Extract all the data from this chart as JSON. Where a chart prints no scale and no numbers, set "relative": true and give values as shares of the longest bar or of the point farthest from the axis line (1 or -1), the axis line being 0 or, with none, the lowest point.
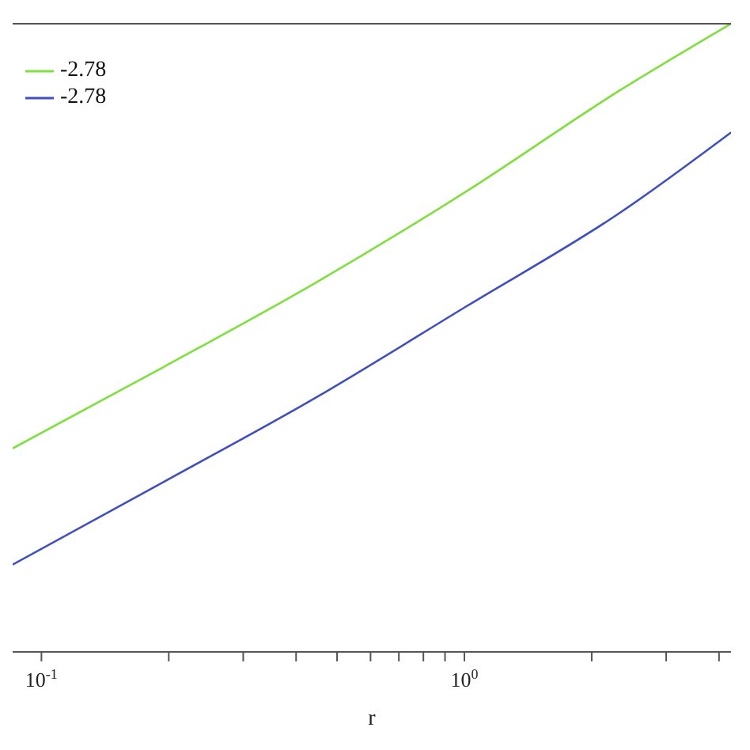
{
  "chart_data": {
    "type": "line",
    "xlabel": "r",
    "log": "x",
    "relative": true,
    "legend": "top left",
    "marker": "none",
    "line_style": "solid",
    "xlim": [
      0.0855,
      4.27
    ],
    "xticks": [
      {
        "value": 0.1,
        "label": "10$^{-1}$"
      },
      {
        "value": 0.2,
        "label": null
      },
      {
        "value": 0.3,
        "label": null
      },
      {
        "value": 0.4,
        "label": null
      },
      {
        "value": 0.5,
        "label": null
      },
      {
        "value": 0.6,
        "label": null
      },
      {
        "value": 0.7,
        "label": null
      },
      {
        "value": 0.8,
        "label": null
      },
      {
        "value": 0.9,
        "label": null
      },
      {
        "value": 1,
        "label": "10$^{0}$"
      },
      {
        "value": 2,
        "label": null
      },
      {
        "value": 3,
        "label": null
      },
      {
        "value": 4,
        "label": null
      }
    ],
    "series": [
      {
        "name": "-2.78",
        "color": "#7fdf3f",
        "x": [
          0.0855,
          0.195,
          0.446,
          1.016,
          2.32,
          4.27
        ],
        "values": [
          0.324,
          0.454,
          0.588,
          0.734,
          0.893,
          1.0
        ]
      },
      {
        "name": "-2.78",
        "color": "#3f4fbf",
        "x": [
          0.0855,
          0.195,
          0.446,
          1.016,
          2.32,
          4.27
        ],
        "values": [
          0.139,
          0.271,
          0.405,
          0.551,
          0.698,
          0.827
        ]
      }
    ]
  }
}
